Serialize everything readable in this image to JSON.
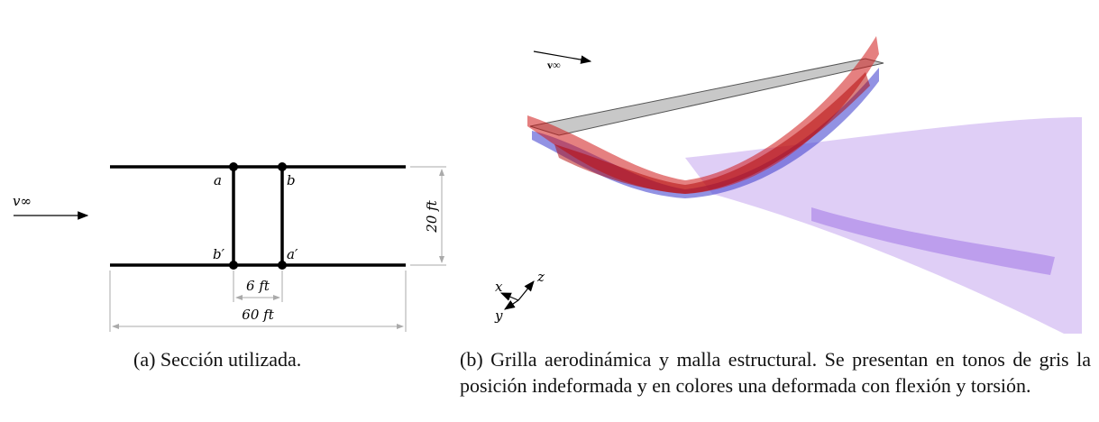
{
  "figure_a": {
    "flow_label": "v∞",
    "node_labels": [
      "a",
      "b",
      "b′",
      "a′"
    ],
    "height_label": "20 ft",
    "gap_label": "6 ft",
    "width_label": "60 ft",
    "caption": "(a) Sección utilizada."
  },
  "figure_b": {
    "flow_label": "v∞",
    "axes": [
      "x",
      "y",
      "z"
    ],
    "caption": "(b) Grilla aerodinámica y malla estructural. Se presentan en tonos de gris la posición indeformada y en colores una deformada con flexión y torsión."
  }
}
